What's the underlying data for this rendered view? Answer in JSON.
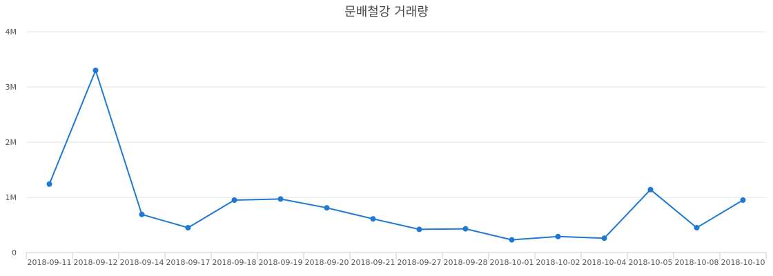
{
  "chart_data": {
    "type": "line",
    "title": "문배철강 거래량",
    "xlabel": "",
    "ylabel": "",
    "ylim": [
      0,
      4000000
    ],
    "y_ticks": [
      0,
      1000000,
      2000000,
      3000000,
      4000000
    ],
    "y_tick_labels": [
      "0",
      "1M",
      "2M",
      "3M",
      "4M"
    ],
    "grid": true,
    "legend": "none",
    "categories": [
      "2018-09-11",
      "2018-09-12",
      "2018-09-14",
      "2018-09-17",
      "2018-09-18",
      "2018-09-19",
      "2018-09-20",
      "2018-09-21",
      "2018-09-27",
      "2018-09-28",
      "2018-10-01",
      "2018-10-02",
      "2018-10-04",
      "2018-10-05",
      "2018-10-08",
      "2018-10-10"
    ],
    "series": [
      {
        "color": "#1f78d1",
        "values": [
          1240000,
          3300000,
          690000,
          450000,
          950000,
          970000,
          810000,
          610000,
          420000,
          430000,
          230000,
          290000,
          260000,
          1140000,
          450000,
          950000
        ]
      }
    ]
  }
}
